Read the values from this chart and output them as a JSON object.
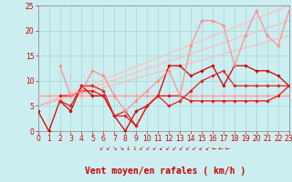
{
  "bg_color": "#cceef0",
  "grid_color": "#aadddd",
  "xlim": [
    0,
    23
  ],
  "ylim": [
    0,
    25
  ],
  "xticks": [
    0,
    1,
    2,
    3,
    4,
    5,
    6,
    7,
    8,
    9,
    10,
    11,
    12,
    13,
    14,
    15,
    16,
    17,
    18,
    19,
    20,
    21,
    22,
    23
  ],
  "yticks": [
    0,
    5,
    10,
    15,
    20,
    25
  ],
  "lines": [
    {
      "x": [
        0,
        1,
        2,
        3,
        4,
        5,
        6,
        7,
        8,
        9,
        10,
        11,
        12,
        13,
        14,
        15,
        16,
        17,
        18,
        19,
        20,
        21,
        22,
        23
      ],
      "y": [
        7,
        7,
        7,
        7,
        7,
        7,
        7,
        7,
        7,
        7,
        7,
        7,
        7,
        7,
        7,
        7,
        7,
        7,
        7,
        7,
        7,
        7,
        7,
        7
      ],
      "color": "#ff9999",
      "lw": 0.9,
      "marker": "D",
      "ms": 1.8,
      "alpha": 1.0,
      "zorder": 3
    },
    {
      "x": [
        0,
        1,
        2,
        3,
        4,
        5,
        6,
        7,
        8,
        9,
        10,
        11,
        12,
        13,
        14,
        15,
        16,
        17,
        18,
        19,
        20,
        21,
        22,
        23
      ],
      "y": [
        4,
        0,
        6,
        4,
        9,
        7,
        7,
        3,
        0,
        4,
        5,
        7,
        13,
        13,
        11,
        12,
        13,
        9,
        13,
        13,
        12,
        12,
        11,
        9
      ],
      "color": "#cc0000",
      "lw": 0.9,
      "marker": "D",
      "ms": 1.8,
      "alpha": 1.0,
      "zorder": 3
    },
    {
      "x": [
        2,
        3,
        4,
        5,
        6,
        7,
        8,
        9,
        10,
        11,
        12,
        13,
        14,
        15,
        16,
        17,
        18,
        19,
        20,
        21,
        22,
        23
      ],
      "y": [
        7,
        7,
        8,
        8,
        7,
        3,
        3,
        1,
        5,
        7,
        7,
        7,
        6,
        6,
        6,
        6,
        6,
        6,
        6,
        6,
        7,
        9
      ],
      "color": "#ee1111",
      "lw": 0.9,
      "marker": "D",
      "ms": 1.8,
      "alpha": 1.0,
      "zorder": 3
    },
    {
      "x": [
        2,
        3,
        4,
        5,
        6,
        7,
        8,
        9,
        10,
        11,
        12,
        13,
        14,
        15,
        16,
        17,
        18,
        19,
        20,
        21,
        22,
        23
      ],
      "y": [
        6,
        5,
        9,
        9,
        8,
        3,
        4,
        1,
        5,
        7,
        5,
        6,
        8,
        10,
        11,
        12,
        9,
        9,
        9,
        9,
        9,
        9
      ],
      "color": "#dd2222",
      "lw": 0.9,
      "marker": "D",
      "ms": 1.8,
      "alpha": 1.0,
      "zorder": 3
    },
    {
      "x": [
        2,
        3,
        4,
        5,
        6,
        7,
        8,
        9,
        10,
        11,
        12,
        13,
        14,
        15,
        16,
        17,
        18,
        19,
        20,
        21,
        22,
        23
      ],
      "y": [
        13,
        7,
        8,
        12,
        11,
        7,
        4,
        6,
        8,
        10,
        12,
        7,
        17,
        22,
        22,
        21,
        13,
        19,
        24,
        19,
        17,
        24
      ],
      "color": "#ff8888",
      "lw": 0.9,
      "marker": "D",
      "ms": 1.8,
      "alpha": 0.9,
      "zorder": 3
    },
    {
      "x": [
        0,
        23
      ],
      "y": [
        5,
        19
      ],
      "color": "#ffbbbb",
      "lw": 1.0,
      "marker": null,
      "ms": 0,
      "alpha": 0.85,
      "zorder": 2
    },
    {
      "x": [
        0,
        23
      ],
      "y": [
        5,
        22
      ],
      "color": "#ffbbbb",
      "lw": 1.0,
      "marker": null,
      "ms": 0,
      "alpha": 0.85,
      "zorder": 2
    },
    {
      "x": [
        0,
        23
      ],
      "y": [
        5,
        25
      ],
      "color": "#ffbbbb",
      "lw": 1.0,
      "marker": null,
      "ms": 0,
      "alpha": 0.85,
      "zorder": 2
    }
  ],
  "arrows": "↙ ↙ ↘ ↘ ↓ ↓ ↙ ↙ ↙ ↙ ↙ ↙ ↙ ↙ ↙ ↙ ↙ ← ← ←",
  "xlabel": "Vent moyen/en rafales ( km/h )",
  "xlabel_color": "#cc0000",
  "xlabel_fontsize": 7,
  "tick_fontsize": 5.5,
  "tick_color": "#cc0000",
  "arrow_fontsize": 4.5,
  "arrow_color": "#cc0000"
}
